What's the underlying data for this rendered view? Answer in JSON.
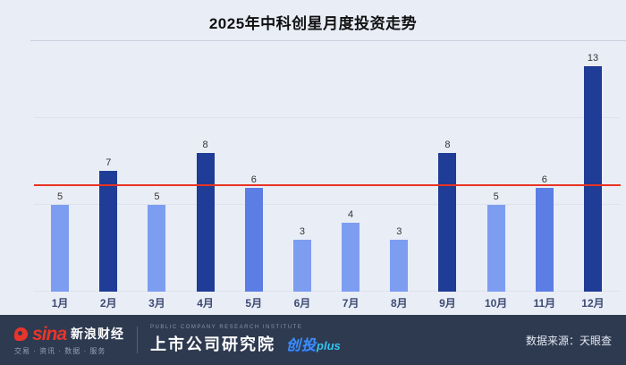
{
  "header": {
    "title": "2025年中科创星月度投资走势"
  },
  "chart_data": {
    "type": "bar",
    "title": "2025年中科创星月度投资走势",
    "categories": [
      "1月",
      "2月",
      "3月",
      "4月",
      "5月",
      "6月",
      "7月",
      "8月",
      "9月",
      "10月",
      "11月",
      "12月"
    ],
    "values": [
      5,
      7,
      5,
      8,
      6,
      3,
      4,
      3,
      8,
      5,
      6,
      13
    ],
    "bar_styles": [
      "light",
      "dark",
      "light",
      "dark",
      "medium",
      "light",
      "light",
      "light",
      "dark",
      "light",
      "medium",
      "dark"
    ],
    "colors": {
      "light": "#7d9df1",
      "medium": "#5b7de4",
      "dark": "#1f3c96",
      "reference_line": "#e93323",
      "background": "#e9edf6"
    },
    "reference_line_value": 6.08,
    "ylim": [
      0,
      14
    ],
    "gridline_values": [
      0,
      5,
      10
    ],
    "xlabel": "",
    "ylabel": "",
    "legend_position": "none"
  },
  "footer": {
    "sina_logo": "sina",
    "sina_brand": "新浪财经",
    "sina_tagline": "交易 · 资讯 · 数据 · 服务",
    "institute_en": "PUBLIC COMPANY RESEARCH INSTITUTE",
    "institute_name": "上市公司研究院",
    "badge_cn": "创投",
    "badge_en": "plus",
    "source": "数据来源：天眼查"
  }
}
